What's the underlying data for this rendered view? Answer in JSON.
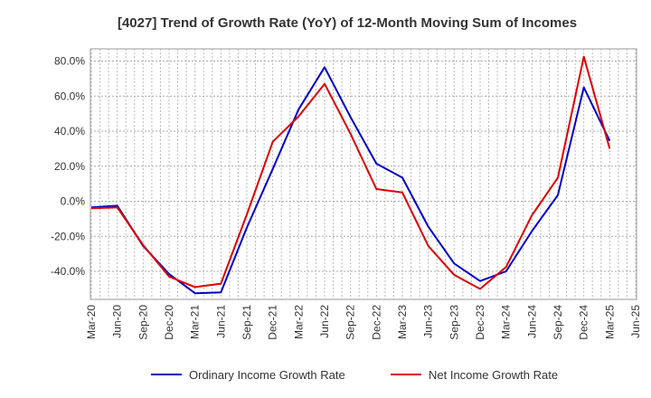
{
  "chart_data": {
    "type": "line",
    "title": "[4027]  Trend of Growth Rate (YoY) of 12-Month Moving Sum of Incomes",
    "xlabel": "",
    "ylabel": "",
    "x_ticks": [
      "Mar-20",
      "Jun-20",
      "Sep-20",
      "Dec-20",
      "Mar-21",
      "Jun-21",
      "Sep-21",
      "Dec-21",
      "Mar-22",
      "Jun-22",
      "Sep-22",
      "Dec-22",
      "Mar-23",
      "Jun-23",
      "Sep-23",
      "Dec-23",
      "Mar-24",
      "Jun-24",
      "Sep-24",
      "Dec-24",
      "Mar-25",
      "Jun-25"
    ],
    "y_ticks": [
      "80.0%",
      "60.0%",
      "40.0%",
      "20.0%",
      "0.0%",
      "-20.0%",
      "-40.0%"
    ],
    "y_tick_values": [
      80,
      60,
      40,
      20,
      0,
      -20,
      -40
    ],
    "ylim": [
      -56,
      87
    ],
    "grid": true,
    "legend_position": "bottom",
    "x": [
      "Mar-20",
      "Apr-20",
      "May-20",
      "Jun-20",
      "Jul-20",
      "Aug-20",
      "Sep-20",
      "Oct-20",
      "Nov-20",
      "Dec-20",
      "Jan-21",
      "Feb-21",
      "Mar-21",
      "Apr-21",
      "May-21",
      "Jun-21",
      "Jul-21",
      "Aug-21",
      "Sep-21",
      "Oct-21",
      "Nov-21",
      "Dec-21",
      "Jan-22",
      "Feb-22",
      "Mar-22",
      "Apr-22",
      "May-22",
      "Jun-22",
      "Jul-22",
      "Aug-22",
      "Sep-22",
      "Oct-22",
      "Nov-22",
      "Dec-22",
      "Jan-23",
      "Feb-23",
      "Mar-23",
      "Apr-23",
      "May-23",
      "Jun-23",
      "Jul-23",
      "Aug-23",
      "Sep-23",
      "Oct-23",
      "Nov-23",
      "Dec-23",
      "Jan-24",
      "Feb-24",
      "Mar-24",
      "Apr-24",
      "May-24",
      "Jun-24",
      "Jul-24",
      "Aug-24",
      "Sep-24",
      "Oct-24",
      "Nov-24",
      "Dec-24",
      "Jan-25",
      "Feb-25",
      "Mar-25"
    ],
    "series": [
      {
        "name": "Ordinary Income Growth Rate",
        "color": "#0000cc",
        "values": [
          -3.5,
          null,
          null,
          -2.5,
          null,
          null,
          -25.5,
          null,
          null,
          -41.5,
          null,
          null,
          -52.5,
          null,
          null,
          -52.0,
          null,
          null,
          -15.0,
          null,
          null,
          18.5,
          null,
          null,
          52.5,
          null,
          null,
          76.5,
          null,
          null,
          48.0,
          null,
          null,
          21.5,
          null,
          null,
          13.5,
          null,
          null,
          -14.5,
          null,
          null,
          -35.5,
          null,
          null,
          -45.5,
          null,
          null,
          -40.0,
          null,
          null,
          -17.0,
          null,
          null,
          3.5,
          null,
          null,
          65.0,
          null,
          null,
          34.5
        ]
      },
      {
        "name": "Net Income Growth Rate",
        "color": "#dd0000",
        "values": [
          -4.0,
          null,
          null,
          -3.5,
          null,
          null,
          -25.0,
          null,
          null,
          -43.0,
          null,
          null,
          -49.0,
          null,
          null,
          -47.0,
          null,
          null,
          -7.5,
          null,
          null,
          34.0,
          null,
          null,
          48.5,
          null,
          null,
          67.0,
          null,
          null,
          38.5,
          null,
          null,
          7.0,
          null,
          null,
          5.0,
          null,
          null,
          -25.5,
          null,
          null,
          -42.0,
          null,
          null,
          -50.0,
          null,
          null,
          -37.5,
          null,
          null,
          -8.0,
          null,
          null,
          13.5,
          null,
          null,
          82.5,
          null,
          null,
          30.0
        ]
      }
    ]
  }
}
